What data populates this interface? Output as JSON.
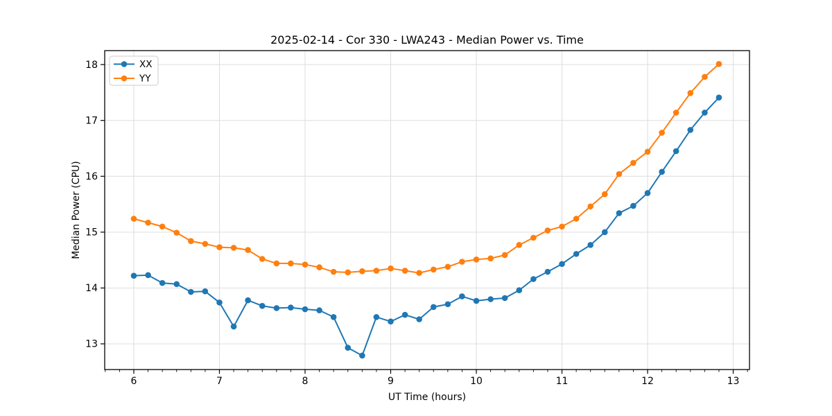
{
  "figure": {
    "title": "2025-02-14 - Cor 330 - LWA243 - Median Power vs. Time"
  },
  "chart_data": {
    "type": "line",
    "title": "2025-02-14 - Cor 330 - LWA243 - Median Power vs. Time",
    "xlabel": "UT Time (hours)",
    "ylabel": "Median Power (CPU)",
    "xlim": [
      5.66,
      13.19
    ],
    "ylim": [
      12.54,
      18.25
    ],
    "xticks": [
      6,
      7,
      8,
      9,
      10,
      11,
      12,
      13
    ],
    "yticks": [
      13,
      14,
      15,
      16,
      17,
      18
    ],
    "x_minor_divisions": 6,
    "grid": true,
    "grid_color": "#dddddd",
    "spine_color": "#000000",
    "legend": {
      "position": "upper left",
      "entries": [
        "XX",
        "YY"
      ]
    },
    "x": [
      6,
      6.167,
      6.333,
      6.5,
      6.667,
      6.833,
      7,
      7.167,
      7.333,
      7.5,
      7.667,
      7.833,
      8,
      8.167,
      8.333,
      8.5,
      8.667,
      8.833,
      9,
      9.167,
      9.333,
      9.5,
      9.667,
      9.833,
      10,
      10.167,
      10.333,
      10.5,
      10.667,
      10.833,
      11,
      11.167,
      11.333,
      11.5,
      11.667,
      11.833,
      12,
      12.167,
      12.333,
      12.5,
      12.667,
      12.833
    ],
    "series": [
      {
        "name": "XX",
        "color": "#1f77b4",
        "values": [
          14.22,
          14.23,
          14.09,
          14.07,
          13.93,
          13.94,
          13.74,
          13.31,
          13.78,
          13.68,
          13.64,
          13.65,
          13.62,
          13.6,
          13.48,
          12.93,
          12.79,
          13.48,
          13.4,
          13.52,
          13.44,
          13.66,
          13.71,
          13.85,
          13.77,
          13.8,
          13.82,
          13.96,
          14.16,
          14.29,
          14.43,
          14.61,
          14.77,
          15.0,
          15.34,
          15.47,
          15.7,
          16.08,
          16.45,
          16.83,
          17.14,
          17.41
        ]
      },
      {
        "name": "YY",
        "color": "#ff7f0e",
        "values": [
          15.24,
          15.17,
          15.1,
          14.99,
          14.84,
          14.79,
          14.73,
          14.72,
          14.68,
          14.52,
          14.44,
          14.44,
          14.42,
          14.37,
          14.29,
          14.28,
          14.3,
          14.31,
          14.35,
          14.31,
          14.27,
          14.33,
          14.38,
          14.47,
          14.51,
          14.53,
          14.59,
          14.77,
          14.9,
          15.03,
          15.1,
          15.24,
          15.46,
          15.68,
          16.04,
          16.24,
          16.44,
          16.78,
          17.14,
          17.49,
          17.78,
          18.01
        ]
      }
    ]
  }
}
